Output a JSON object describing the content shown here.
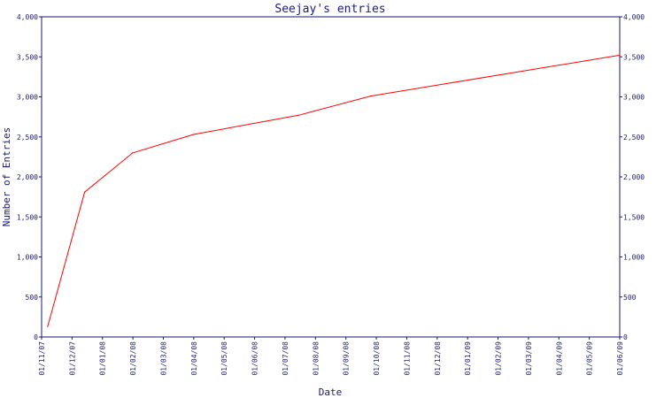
{
  "chart_data": {
    "type": "line",
    "title": "Seejay's entries",
    "xlabel": "Date",
    "ylabel": "Number of Entries",
    "x_tick_labels": [
      "01/11/07",
      "01/12/07",
      "01/01/08",
      "01/02/08",
      "01/03/08",
      "01/04/08",
      "01/05/08",
      "01/06/08",
      "01/07/08",
      "01/08/08",
      "01/09/08",
      "01/10/08",
      "01/11/08",
      "01/12/08",
      "01/01/09",
      "01/02/09",
      "01/03/09",
      "01/04/09",
      "01/05/09",
      "01/06/09"
    ],
    "y_tick_labels": [
      "0",
      "500",
      "1,000",
      "1,500",
      "2,000",
      "2,500",
      "3,000",
      "3,500",
      "4,000"
    ],
    "y_ticks": [
      0,
      500,
      1000,
      1500,
      2000,
      2500,
      3000,
      3500,
      4000
    ],
    "ylim": [
      0,
      4000
    ],
    "xlim": [
      "2007-11-01",
      "2009-06-01"
    ],
    "grid": false,
    "colors": {
      "line": "#ff0000",
      "axis": "#1a1a6e",
      "title": "#1a1a8c"
    },
    "series": [
      {
        "x": [
          "2007-11-07",
          "2007-12-14",
          "2008-01-31",
          "2008-04-01",
          "2008-07-15",
          "2008-09-25",
          "2009-06-01"
        ],
        "values": [
          130,
          1810,
          2300,
          2530,
          2770,
          3010,
          3520
        ]
      }
    ]
  }
}
